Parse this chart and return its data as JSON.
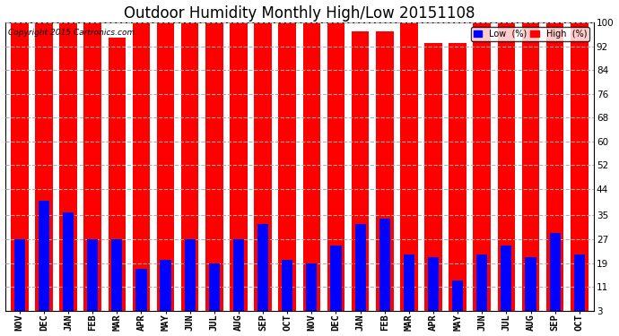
{
  "title": "Outdoor Humidity Monthly High/Low 20151108",
  "copyright": "Copyright 2015 Cartronics.com",
  "months": [
    "NOV",
    "DEC",
    "JAN",
    "FEB",
    "MAR",
    "APR",
    "MAY",
    "JUN",
    "JUL",
    "AUG",
    "SEP",
    "OCT",
    "NOV",
    "DEC",
    "JAN",
    "FEB",
    "MAR",
    "APR",
    "MAY",
    "JUN",
    "JUL",
    "AUG",
    "SEP",
    "OCT"
  ],
  "high_values": [
    100,
    100,
    100,
    100,
    95,
    100,
    100,
    100,
    100,
    100,
    100,
    100,
    100,
    100,
    97,
    97,
    100,
    93,
    93,
    100,
    100,
    100,
    100,
    100
  ],
  "low_values": [
    27,
    40,
    36,
    27,
    27,
    17,
    20,
    27,
    19,
    27,
    32,
    20,
    19,
    25,
    32,
    34,
    22,
    21,
    13,
    22,
    25,
    21,
    29,
    22
  ],
  "high_color": "#FF0000",
  "low_color": "#0000FF",
  "bg_color": "#FFFFFF",
  "yticks": [
    3,
    11,
    19,
    27,
    35,
    44,
    52,
    60,
    68,
    76,
    84,
    92,
    100
  ],
  "ylim_min": 3,
  "ylim_max": 100,
  "grid_color": "#B0B0B0",
  "title_fontsize": 12,
  "tick_fontsize": 7.5,
  "legend_low_label": "Low  (%)",
  "legend_high_label": "High  (%)"
}
